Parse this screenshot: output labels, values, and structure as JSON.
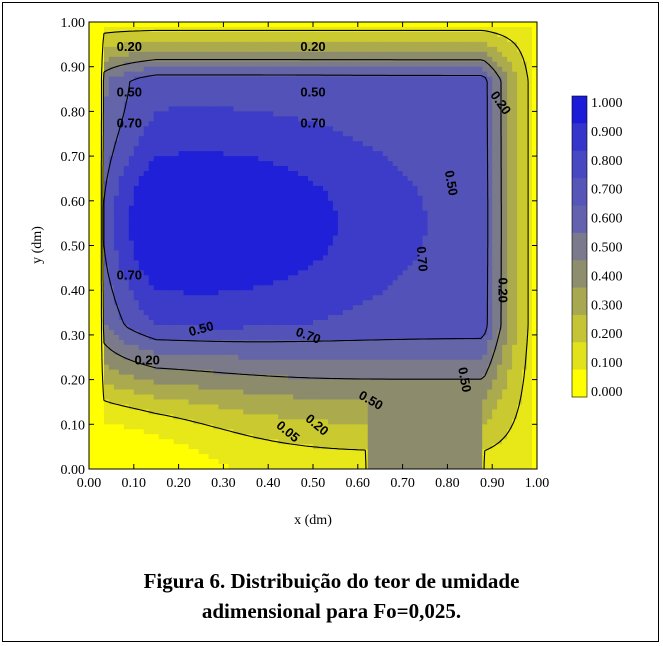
{
  "caption": {
    "line1": "Figura 6. Distribuição do teor de umidade",
    "line2": "adimensional para Fo=0,025."
  },
  "chart_data": {
    "type": "contour",
    "xlabel": "x (dm)",
    "ylabel": "y (dm)",
    "xlim": [
      0.0,
      1.0
    ],
    "ylim": [
      0.0,
      1.0
    ],
    "x_ticks": [
      "0.00",
      "0.10",
      "0.20",
      "0.30",
      "0.40",
      "0.50",
      "0.60",
      "0.70",
      "0.80",
      "0.90",
      "1.00"
    ],
    "y_ticks": [
      "0.00",
      "0.10",
      "0.20",
      "0.30",
      "0.40",
      "0.50",
      "0.60",
      "0.70",
      "0.80",
      "0.90",
      "1.00"
    ],
    "colorbar": {
      "levels": [
        "1.000",
        "0.900",
        "0.800",
        "0.700",
        "0.600",
        "0.500",
        "0.400",
        "0.300",
        "0.200",
        "0.100",
        "0.000"
      ],
      "colors": [
        "#1c1cd8",
        "#3535cc",
        "#4848c2",
        "#5656b8",
        "#6262ae",
        "#7a7a8c",
        "#8e8e6e",
        "#a8a850",
        "#c4c436",
        "#e2e21c",
        "#ffff00"
      ]
    },
    "field_bands": [
      {
        "level": 0.0,
        "color": "#ffff00"
      },
      {
        "level": 0.1,
        "color": "#e8e818"
      },
      {
        "level": 0.2,
        "color": "#caca30"
      },
      {
        "level": 0.3,
        "color": "#abab4e"
      },
      {
        "level": 0.4,
        "color": "#8c8c6c"
      },
      {
        "level": 0.5,
        "color": "#7a7a8a"
      },
      {
        "level": 0.6,
        "color": "#6464a8"
      },
      {
        "level": 0.7,
        "color": "#5252b8"
      },
      {
        "level": 0.8,
        "color": "#3c3cc8"
      },
      {
        "level": 0.9,
        "color": "#2020d8"
      }
    ],
    "contour_labels": [
      {
        "text": "0.20",
        "x": 0.09,
        "y": 0.946,
        "angle": 0
      },
      {
        "text": "0.20",
        "x": 0.5,
        "y": 0.946,
        "angle": 0
      },
      {
        "text": "0.20",
        "x": 0.92,
        "y": 0.82,
        "angle": 55
      },
      {
        "text": "0.50",
        "x": 0.09,
        "y": 0.845,
        "angle": 0
      },
      {
        "text": "0.50",
        "x": 0.5,
        "y": 0.845,
        "angle": 0
      },
      {
        "text": "0.70",
        "x": 0.09,
        "y": 0.775,
        "angle": 0
      },
      {
        "text": "0.70",
        "x": 0.5,
        "y": 0.775,
        "angle": 0
      },
      {
        "text": "0.50",
        "x": 0.81,
        "y": 0.64,
        "angle": 80
      },
      {
        "text": "0.70",
        "x": 0.745,
        "y": 0.47,
        "angle": 85
      },
      {
        "text": "0.20",
        "x": 0.925,
        "y": 0.4,
        "angle": 90
      },
      {
        "text": "0.70",
        "x": 0.09,
        "y": 0.435,
        "angle": 0
      },
      {
        "text": "0.50",
        "x": 0.25,
        "y": 0.315,
        "angle": -15
      },
      {
        "text": "0.70",
        "x": 0.49,
        "y": 0.3,
        "angle": 20
      },
      {
        "text": "0.50",
        "x": 0.84,
        "y": 0.2,
        "angle": 80
      },
      {
        "text": "0.20",
        "x": 0.13,
        "y": 0.245,
        "angle": 0
      },
      {
        "text": "0.50",
        "x": 0.63,
        "y": 0.155,
        "angle": 30
      },
      {
        "text": "0.20",
        "x": 0.51,
        "y": 0.1,
        "angle": 40
      },
      {
        "text": "0.05",
        "x": 0.445,
        "y": 0.085,
        "angle": 40
      }
    ]
  }
}
